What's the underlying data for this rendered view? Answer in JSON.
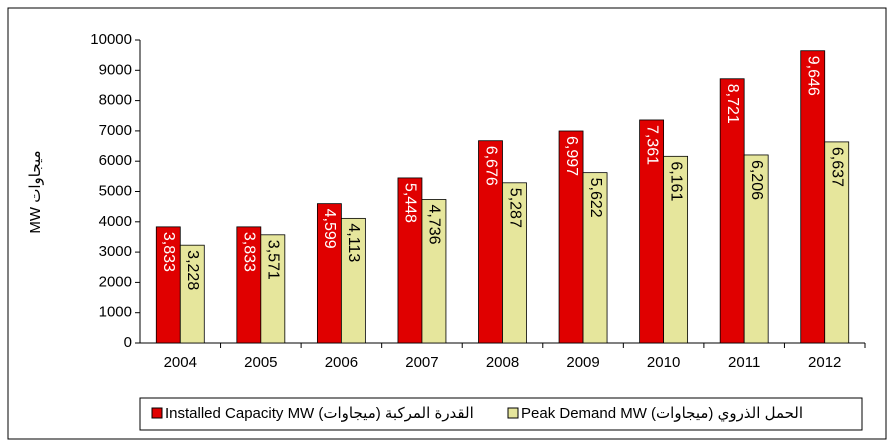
{
  "chart_data": {
    "type": "bar",
    "y_label": "MW ميجاوات",
    "categories": [
      "2004",
      "2005",
      "2006",
      "2007",
      "2008",
      "2009",
      "2010",
      "2011",
      "2012"
    ],
    "series": [
      {
        "name": "Installed Capacity MW  القدرة المركبة  (ميجاوات)",
        "color": "#e00000",
        "values": [
          3833,
          3833,
          4599,
          5448,
          6676,
          6997,
          7361,
          8721,
          9646
        ],
        "value_labels": [
          "3,833",
          "3,833",
          "4,599",
          "5,448",
          "6,676",
          "6,997",
          "7,361",
          "8,721",
          "9,646"
        ]
      },
      {
        "name": "Peak Demand MW (ميجاوات) الحمل الذروي",
        "color": "#e6e69c",
        "values": [
          3228,
          3571,
          4113,
          4736,
          5287,
          5622,
          6161,
          6206,
          6637
        ],
        "value_labels": [
          "3,228",
          "3,571",
          "4,113",
          "4,736",
          "5,287",
          "5,622",
          "6,161",
          "6,206",
          "6,637"
        ]
      }
    ],
    "ylim": [
      0,
      10000
    ],
    "yticks": [
      0,
      1000,
      2000,
      3000,
      4000,
      5000,
      6000,
      7000,
      8000,
      9000,
      10000
    ],
    "grid": false,
    "legend": "bottom"
  }
}
